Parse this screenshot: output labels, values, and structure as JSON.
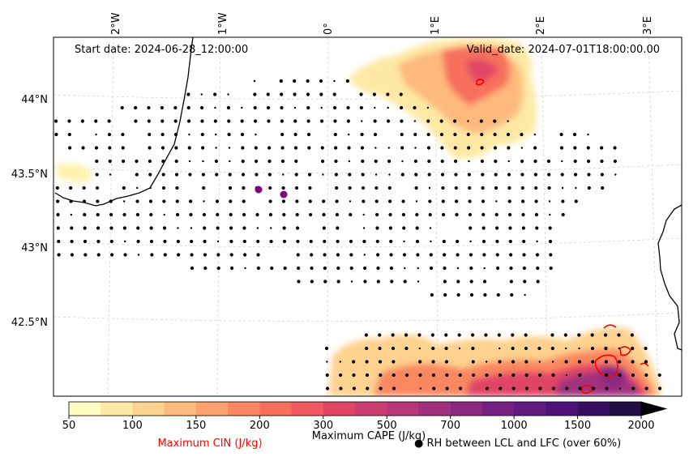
{
  "map": {
    "start_date": "Start date: 2024-06-28_12:00:00",
    "valid_date": "Valid_date: 2024-07-01T18:00:00.00",
    "lon_labels": [
      "2°W",
      "1°W",
      "0°",
      "1°E",
      "2°E",
      "3°E"
    ],
    "lat_labels": [
      "44°N",
      "43.5°N",
      "43°N",
      "42.5°N"
    ]
  },
  "colorbar": {
    "ticks": [
      "50",
      "100",
      "150",
      "200",
      "300",
      "500",
      "700",
      "1000",
      "1500",
      "2000"
    ],
    "colors": [
      "#fffdbf",
      "#fee9a4",
      "#fed28f",
      "#feb97d",
      "#fda16f",
      "#fb8761",
      "#f76f5c",
      "#ef5960",
      "#e04566",
      "#cb3e72",
      "#b73779",
      "#a1307e",
      "#8c2981",
      "#762181",
      "#611a7f",
      "#4d1279",
      "#370f61",
      "#1f0f44"
    ],
    "cape_label": "Maximum CAPE (J/kg)",
    "cin_label": "Maximum CIN (J/kg)",
    "cin_color": "#ff0000",
    "rh_label": "● RH between LCL and LFC (over 60%)"
  },
  "markers": {
    "point_color": "#800080"
  }
}
